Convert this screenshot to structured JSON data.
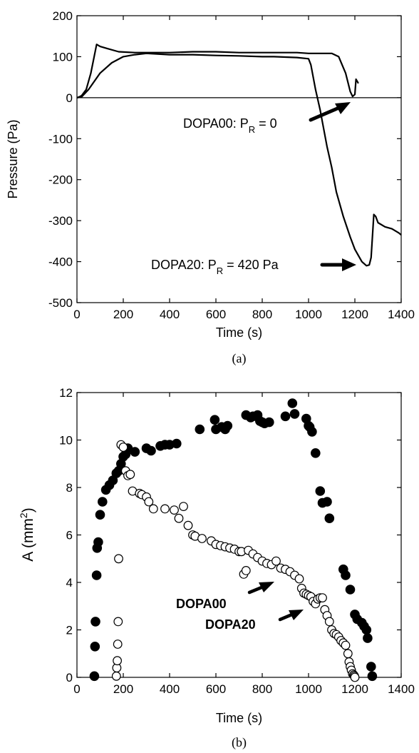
{
  "chart_data": [
    {
      "type": "line",
      "xlabel": "Time (s)",
      "ylabel": "Pressure (Pa)",
      "xlim": [
        0,
        1400
      ],
      "ylim": [
        -500,
        200
      ],
      "xticks": [
        "0",
        "200",
        "400",
        "600",
        "800",
        "1000",
        "1200",
        "1400"
      ],
      "yticks": [
        "200",
        "100",
        "0",
        "-100",
        "-200",
        "-300",
        "-400",
        "-500"
      ],
      "caption": "(a)",
      "zero_line": true,
      "grid": false,
      "series": [
        {
          "x": [
            0,
            10,
            20,
            40,
            60,
            85,
            100,
            130,
            180,
            250,
            300,
            400,
            500,
            600,
            700,
            800,
            900,
            950,
            1000,
            1050,
            1100,
            1130,
            1160,
            1180,
            1190,
            1200,
            1205,
            1210,
            1215
          ],
          "y": [
            0,
            2,
            5,
            20,
            60,
            130,
            125,
            120,
            112,
            110,
            110,
            110,
            112,
            112,
            110,
            110,
            110,
            110,
            108,
            108,
            108,
            100,
            60,
            15,
            3,
            8,
            45,
            40,
            35
          ]
        },
        {
          "x": [
            0,
            20,
            50,
            100,
            150,
            200,
            250,
            300,
            400,
            500,
            600,
            700,
            800,
            850,
            900,
            950,
            1000,
            1010,
            1030,
            1050,
            1060,
            1080,
            1100,
            1120,
            1150,
            1180,
            1200,
            1230,
            1250,
            1262,
            1270,
            1282,
            1290,
            1300,
            1330,
            1360,
            1390,
            1400
          ],
          "y": [
            0,
            2,
            20,
            60,
            85,
            100,
            105,
            108,
            105,
            105,
            103,
            102,
            100,
            100,
            99,
            98,
            95,
            80,
            20,
            -30,
            -60,
            -120,
            -170,
            -230,
            -290,
            -340,
            -370,
            -400,
            -410,
            -408,
            -390,
            -285,
            -290,
            -305,
            -315,
            -320,
            -330,
            -335
          ]
        }
      ],
      "annotations": [
        {
          "text": "DOPA00: P",
          "subscript": "R",
          "suffix": " = 0"
        },
        {
          "text": "DOPA20: P",
          "subscript": "R",
          "suffix": " = 420 Pa"
        }
      ]
    },
    {
      "type": "scatter",
      "xlabel": "Time (s)",
      "ylabel_main": "A (mm",
      "ylabel_sup": "2",
      "ylabel_tail": ")",
      "xlim": [
        0,
        1400
      ],
      "ylim": [
        0,
        12
      ],
      "xticks": [
        "0",
        "200",
        "400",
        "600",
        "800",
        "1000",
        "1200",
        "1400"
      ],
      "yticks": [
        "12",
        "10",
        "8",
        "6",
        "4",
        "2",
        "0"
      ],
      "caption": "(b)",
      "grid": false,
      "series": [
        {
          "name": "DOPA20",
          "marker": "filled-circle",
          "x": [
            75,
            78,
            80,
            85,
            87,
            92,
            100,
            110,
            125,
            140,
            155,
            170,
            180,
            190,
            200,
            210,
            220,
            250,
            300,
            320,
            360,
            380,
            400,
            430,
            530,
            595,
            600,
            625,
            640,
            650,
            730,
            750,
            760,
            780,
            790,
            800,
            810,
            830,
            900,
            930,
            940,
            990,
            1000,
            1005,
            1015,
            1030,
            1050,
            1060,
            1080,
            1090,
            1150,
            1160,
            1180,
            1200,
            1210,
            1230,
            1240,
            1250,
            1255,
            1270,
            1275
          ],
          "y": [
            0.05,
            1.3,
            2.35,
            4.3,
            5.45,
            5.7,
            6.85,
            7.4,
            7.9,
            8.1,
            8.3,
            8.6,
            8.7,
            9.0,
            9.3,
            9.4,
            9.65,
            9.5,
            9.65,
            9.55,
            9.75,
            9.8,
            9.8,
            9.85,
            10.45,
            10.85,
            10.45,
            10.55,
            10.45,
            10.6,
            11.05,
            10.95,
            11.0,
            11.05,
            10.8,
            10.75,
            10.7,
            10.75,
            11.0,
            11.55,
            11.1,
            10.9,
            10.6,
            10.55,
            10.35,
            9.45,
            7.85,
            7.35,
            7.4,
            6.7,
            4.55,
            4.3,
            3.7,
            2.65,
            2.45,
            2.3,
            2.15,
            2.0,
            1.65,
            0.45,
            0.05
          ]
        },
        {
          "name": "DOPA00",
          "marker": "open-circle",
          "x": [
            170,
            172,
            174,
            176,
            178,
            180,
            190,
            200,
            210,
            220,
            230,
            240,
            270,
            280,
            300,
            310,
            330,
            380,
            420,
            440,
            460,
            480,
            500,
            510,
            540,
            580,
            600,
            620,
            640,
            660,
            680,
            700,
            710,
            720,
            730,
            740,
            760,
            780,
            800,
            820,
            840,
            860,
            880,
            900,
            920,
            940,
            960,
            970,
            980,
            990,
            1000,
            1010,
            1020,
            1030,
            1040,
            1050,
            1060,
            1070,
            1080,
            1090,
            1100,
            1110,
            1120,
            1130,
            1140,
            1150,
            1160,
            1170,
            1175,
            1180,
            1185,
            1190,
            1195,
            1198,
            1200
          ],
          "y": [
            0.05,
            0.4,
            0.7,
            1.4,
            2.35,
            5.0,
            9.8,
            9.7,
            8.7,
            8.5,
            8.55,
            7.85,
            7.75,
            7.7,
            7.6,
            7.4,
            7.1,
            7.1,
            7.05,
            6.7,
            7.2,
            6.4,
            6.0,
            5.95,
            5.85,
            5.75,
            5.6,
            5.55,
            5.5,
            5.45,
            5.4,
            5.3,
            5.3,
            4.35,
            4.5,
            5.35,
            5.2,
            5.05,
            4.9,
            4.8,
            4.75,
            4.9,
            4.6,
            4.55,
            4.45,
            4.3,
            4.15,
            3.75,
            3.55,
            3.5,
            3.45,
            3.4,
            3.2,
            3.1,
            3.3,
            3.35,
            3.35,
            2.85,
            2.6,
            2.35,
            2.0,
            1.85,
            1.8,
            1.7,
            1.55,
            1.45,
            1.35,
            1.0,
            0.65,
            0.45,
            0.3,
            0.15,
            0.1,
            0.05,
            0.0
          ]
        }
      ],
      "annotations": [
        {
          "text": "DOPA20"
        },
        {
          "text": "DOPA00"
        }
      ]
    }
  ]
}
